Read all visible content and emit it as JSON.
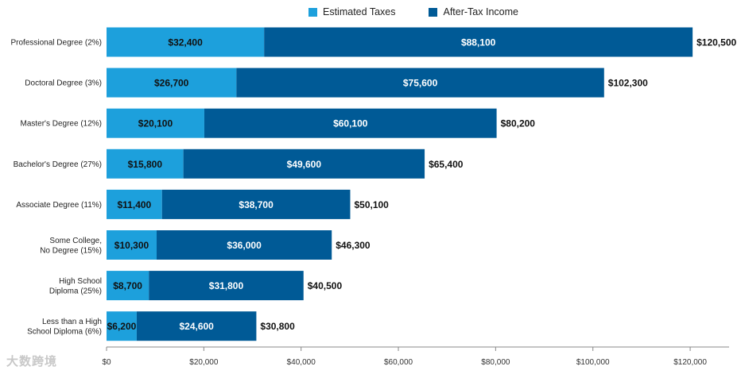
{
  "colors": {
    "taxes": "#1da0dc",
    "income": "#005a96",
    "axis": "#888888",
    "text": "#111111"
  },
  "watermark": "大数跨境",
  "chart_data": {
    "type": "bar",
    "orientation": "horizontal",
    "stacked": true,
    "title": "",
    "xlabel": "",
    "ylabel": "",
    "xlim": [
      0,
      128000
    ],
    "legend_position": "top",
    "categories": [
      [
        "Professional Degree (2%)"
      ],
      [
        "Doctoral Degree (3%)"
      ],
      [
        "Master's Degree (12%)"
      ],
      [
        "Bachelor's Degree (27%)"
      ],
      [
        "Associate Degree (11%)"
      ],
      [
        "Some College,",
        "No Degree (15%)"
      ],
      [
        "High School",
        "Diploma (25%)"
      ],
      [
        "Less than a High",
        "School Diploma (6%)"
      ]
    ],
    "series": [
      {
        "name": "Estimated Taxes",
        "values": [
          32400,
          26700,
          20100,
          15800,
          11400,
          10300,
          8700,
          6200
        ],
        "labels": [
          "$32,400",
          "$26,700",
          "$20,100",
          "$15,800",
          "$11,400",
          "$10,300",
          "$8,700",
          "$6,200"
        ]
      },
      {
        "name": "After-Tax Income",
        "values": [
          88100,
          75600,
          60100,
          49600,
          38700,
          36000,
          31800,
          24600
        ],
        "labels": [
          "$88,100",
          "$75,600",
          "$60,100",
          "$49,600",
          "$38,700",
          "$36,000",
          "$31,800",
          "$24,600"
        ]
      }
    ],
    "totals": [
      120500,
      102300,
      80200,
      65400,
      50100,
      46300,
      40500,
      30800
    ],
    "total_labels": [
      "$120,500",
      "$102,300",
      "$80,200",
      "$65,400",
      "$50,100",
      "$46,300",
      "$40,500",
      "$30,800"
    ],
    "xticks": [
      0,
      20000,
      40000,
      60000,
      80000,
      100000,
      120000
    ],
    "xtick_labels": [
      "$0",
      "$20,000",
      "$40,000",
      "$60,000",
      "$80,000",
      "$100,000",
      "$120,000"
    ]
  }
}
